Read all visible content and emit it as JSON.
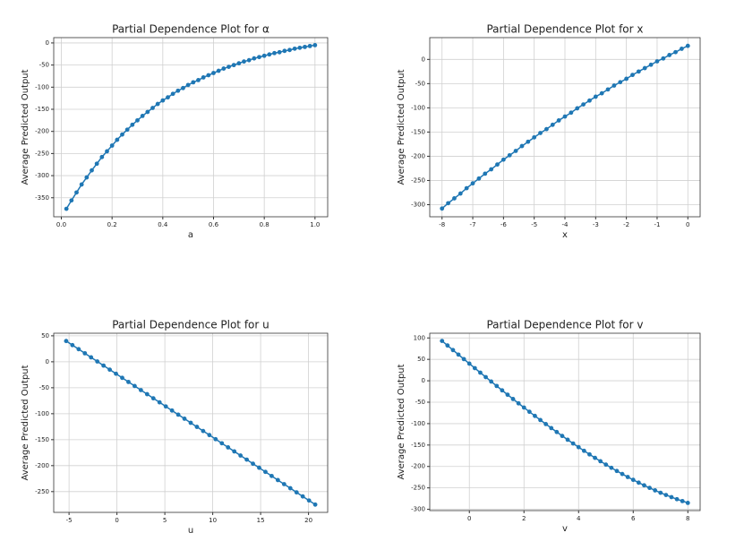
{
  "chart_data": [
    {
      "type": "line",
      "title": "Partial Dependence Plot for α",
      "xlabel": "a",
      "ylabel": "Average Predicted Output",
      "color": "#1f77b4",
      "grid": true,
      "x": [
        0.02,
        0.04,
        0.06,
        0.08,
        0.1,
        0.12,
        0.14,
        0.16,
        0.18,
        0.2,
        0.22,
        0.24,
        0.26,
        0.28,
        0.3,
        0.32,
        0.34,
        0.36,
        0.38,
        0.4,
        0.42,
        0.44,
        0.46,
        0.48,
        0.5,
        0.52,
        0.54,
        0.56,
        0.58,
        0.6,
        0.62,
        0.64,
        0.66,
        0.68,
        0.7,
        0.72,
        0.74,
        0.76,
        0.78,
        0.8,
        0.82,
        0.84,
        0.86,
        0.88,
        0.9,
        0.92,
        0.94,
        0.96,
        0.98,
        1.0
      ],
      "values": [
        -375,
        -356,
        -338,
        -320,
        -304,
        -288,
        -273,
        -258,
        -245,
        -232,
        -219,
        -207,
        -196,
        -185,
        -175,
        -165,
        -156,
        -147,
        -138,
        -130,
        -123,
        -115,
        -108,
        -102,
        -95,
        -89,
        -84,
        -78,
        -73,
        -68,
        -63,
        -58,
        -54,
        -50,
        -46,
        -42,
        -39,
        -35,
        -32,
        -29,
        -26,
        -23,
        -21,
        -18,
        -16,
        -13,
        -11,
        -9,
        -7,
        -5
      ],
      "xlim": [
        -0.03,
        1.05
      ],
      "ylim": [
        -393,
        12
      ],
      "xticks": [
        {
          "value": 0,
          "label": "0.0"
        },
        0.2,
        0.4,
        0.6,
        0.8,
        {
          "value": 1,
          "label": "1.0"
        }
      ],
      "yticks": [
        0,
        -50,
        -100,
        -150,
        -200,
        -250,
        -300,
        -350
      ]
    },
    {
      "type": "line",
      "title": "Partial Dependence Plot for x",
      "xlabel": "x",
      "ylabel": "Average Predicted Output",
      "color": "#1f77b4",
      "grid": true,
      "x": [
        -8,
        -7.8,
        -7.6,
        -7.4,
        -7.2,
        -7,
        -6.8,
        -6.6,
        -6.4,
        -6.2,
        -6,
        -5.8,
        -5.6,
        -5.4,
        -5.2,
        -5,
        -4.8,
        -4.6,
        -4.4,
        -4.2,
        -4,
        -3.8,
        -3.6,
        -3.4,
        -3.2,
        -3,
        -2.8,
        -2.6,
        -2.4,
        -2.2,
        -2,
        -1.8,
        -1.6,
        -1.4,
        -1.2,
        -1,
        -0.8,
        -0.6,
        -0.4,
        -0.2,
        0
      ],
      "values": [
        -308,
        -297,
        -287,
        -277,
        -266,
        -256,
        -246,
        -236,
        -227,
        -217,
        -207,
        -198,
        -189,
        -179,
        -170,
        -161,
        -152,
        -144,
        -135,
        -126,
        -118,
        -110,
        -101,
        -93,
        -85,
        -77,
        -70,
        -62,
        -54,
        -47,
        -40,
        -32,
        -25,
        -18,
        -11,
        -4,
        2,
        9,
        15,
        22,
        28
      ],
      "xlim": [
        -8.4,
        0.4
      ],
      "ylim": [
        -325,
        45
      ],
      "xticks": [
        -8,
        -7,
        -6,
        -5,
        -4,
        -3,
        -2,
        -1,
        0
      ],
      "yticks": [
        0,
        -50,
        -100,
        -150,
        -200,
        -250,
        -300
      ]
    },
    {
      "type": "line",
      "title": "Partial Dependence Plot for u",
      "xlabel": "u",
      "ylabel": "Average Predicted Output",
      "color": "#1f77b4",
      "grid": true,
      "x": [
        -5.3,
        -4.65,
        -4,
        -3.35,
        -2.7,
        -2.05,
        -1.4,
        -0.75,
        -0.1,
        0.55,
        1.2,
        1.85,
        2.5,
        3.15,
        3.8,
        4.45,
        5.1,
        5.75,
        6.4,
        7.05,
        7.7,
        8.35,
        9,
        9.65,
        10.3,
        10.95,
        11.6,
        12.25,
        12.9,
        13.55,
        14.2,
        14.85,
        15.5,
        16.15,
        16.8,
        17.45,
        18.1,
        18.75,
        19.4,
        20.05,
        20.7
      ],
      "values": [
        40,
        32.1,
        24.3,
        16.4,
        8.5,
        0.6,
        -7.3,
        -15.1,
        -23,
        -30.9,
        -38.8,
        -46.6,
        -54.5,
        -62.4,
        -70.3,
        -78.1,
        -86,
        -93.9,
        -101.8,
        -109.6,
        -117.5,
        -125.4,
        -133.3,
        -141.1,
        -149,
        -156.9,
        -164.8,
        -172.6,
        -180.5,
        -188.4,
        -196.3,
        -204.1,
        -212,
        -219.9,
        -227.8,
        -235.6,
        -243.5,
        -251.4,
        -259.3,
        -267.1,
        -275
      ],
      "xlim": [
        -6.6,
        22
      ],
      "ylim": [
        -290,
        55
      ],
      "xticks": [
        -5,
        0,
        5,
        10,
        15,
        20
      ],
      "yticks": [
        50,
        0,
        -50,
        -100,
        -150,
        -200,
        -250
      ]
    },
    {
      "type": "line",
      "title": "Partial Dependence Plot for v",
      "xlabel": "v",
      "ylabel": "Average Predicted Output",
      "color": "#1f77b4",
      "grid": true,
      "x": [
        -1,
        -0.8,
        -0.6,
        -0.4,
        -0.2,
        0,
        0.2,
        0.4,
        0.6,
        0.8,
        1,
        1.2,
        1.4,
        1.6,
        1.8,
        2,
        2.2,
        2.4,
        2.6,
        2.8,
        3,
        3.2,
        3.4,
        3.6,
        3.8,
        4,
        4.2,
        4.4,
        4.6,
        4.8,
        5,
        5.2,
        5.4,
        5.6,
        5.8,
        6,
        6.2,
        6.4,
        6.6,
        6.8,
        7,
        7.2,
        7.4,
        7.6,
        7.8,
        8
      ],
      "values": [
        93,
        82.4,
        71.7,
        61.1,
        50.6,
        40,
        29.5,
        19,
        8.6,
        -1.8,
        -12.1,
        -22.3,
        -32.5,
        -42.6,
        -52.6,
        -62.5,
        -72.3,
        -82,
        -91.6,
        -101,
        -110.4,
        -119.6,
        -128.7,
        -137.6,
        -146.4,
        -155,
        -163.5,
        -171.8,
        -179.9,
        -187.8,
        -195.6,
        -203.1,
        -210.5,
        -217.6,
        -224.6,
        -231.3,
        -237.8,
        -244,
        -250,
        -255.8,
        -261.4,
        -266.6,
        -271.6,
        -276.4,
        -280.8,
        -285
      ],
      "xlim": [
        -1.45,
        8.45
      ],
      "ylim": [
        -303,
        111
      ],
      "xticks": [
        0,
        2,
        4,
        6,
        8
      ],
      "yticks": [
        100,
        50,
        0,
        -50,
        -100,
        -150,
        -200,
        -250,
        -300
      ]
    }
  ]
}
